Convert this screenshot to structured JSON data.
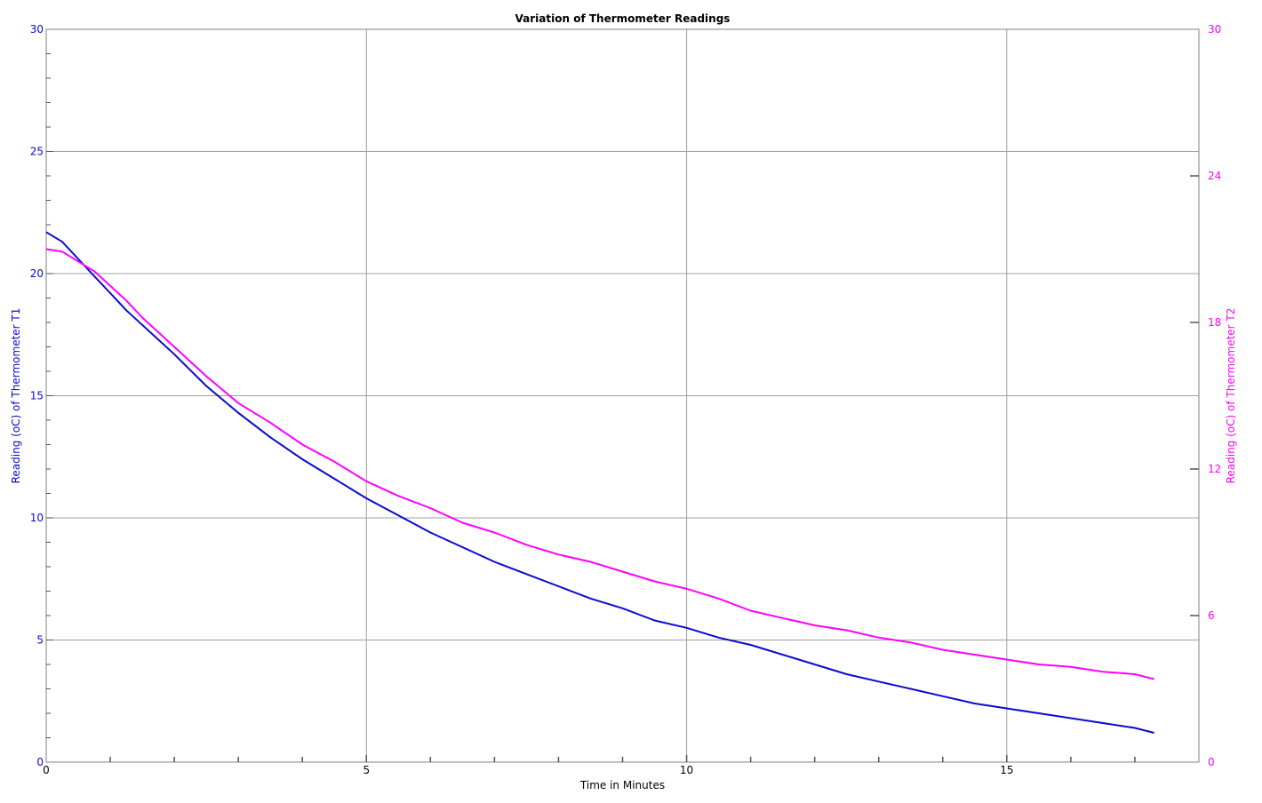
{
  "chart_data": {
    "type": "line",
    "title": "Variation of Thermometer Readings",
    "xlabel": "Time in Minutes",
    "ylabel": "Reading (oC) of Thermometer T1",
    "y2label": "Reading (oC) of Thermometer T2",
    "xlim": [
      0,
      18
    ],
    "ylim": [
      0,
      30
    ],
    "y2lim": [
      0,
      30
    ],
    "x_ticks": [
      0,
      5,
      10,
      15
    ],
    "y_ticks": [
      0,
      5,
      10,
      15,
      20,
      25,
      30
    ],
    "y2_ticks": [
      0,
      6,
      12,
      18,
      24,
      30
    ],
    "grid": true,
    "colors": {
      "t1": "#0a0ad2",
      "t2": "#ff00ff",
      "grid": "#a0a0a0",
      "axis": "#808080"
    },
    "series": [
      {
        "name": "T1",
        "axis": "left",
        "x": [
          0,
          0.25,
          0.5,
          0.75,
          1,
          1.25,
          1.5,
          2,
          2.5,
          3,
          3.5,
          4,
          4.5,
          5,
          5.5,
          6,
          6.5,
          7,
          7.5,
          8,
          8.5,
          9,
          9.5,
          10,
          10.5,
          11,
          11.5,
          12,
          12.5,
          13,
          13.5,
          14,
          14.5,
          15,
          15.5,
          16,
          16.5,
          17,
          17.3
        ],
        "y": [
          21.7,
          21.3,
          20.6,
          19.9,
          19.2,
          18.5,
          17.9,
          16.7,
          15.4,
          14.3,
          13.3,
          12.4,
          11.6,
          10.8,
          10.1,
          9.4,
          8.8,
          8.2,
          7.7,
          7.2,
          6.7,
          6.3,
          5.8,
          5.5,
          5.1,
          4.8,
          4.4,
          4.0,
          3.6,
          3.3,
          3.0,
          2.7,
          2.4,
          2.2,
          2.0,
          1.8,
          1.6,
          1.4,
          1.2
        ]
      },
      {
        "name": "T2",
        "axis": "right",
        "x": [
          0,
          0.25,
          0.5,
          0.75,
          1,
          1.25,
          1.5,
          2,
          2.5,
          3,
          3.5,
          4,
          4.5,
          5,
          5.5,
          6,
          6.5,
          7,
          7.5,
          8,
          8.5,
          9,
          9.5,
          10,
          10.5,
          11,
          11.5,
          12,
          12.5,
          13,
          13.5,
          14,
          14.5,
          15,
          15.5,
          16,
          16.5,
          17,
          17.3
        ],
        "y": [
          21.0,
          20.9,
          20.5,
          20.1,
          19.5,
          18.9,
          18.2,
          17.0,
          15.8,
          14.7,
          13.9,
          13.0,
          12.3,
          11.5,
          10.9,
          10.4,
          9.8,
          9.4,
          8.9,
          8.5,
          8.2,
          7.8,
          7.4,
          7.1,
          6.7,
          6.2,
          5.9,
          5.6,
          5.4,
          5.1,
          4.9,
          4.6,
          4.4,
          4.2,
          4.0,
          3.9,
          3.7,
          3.6,
          3.4
        ]
      }
    ]
  }
}
